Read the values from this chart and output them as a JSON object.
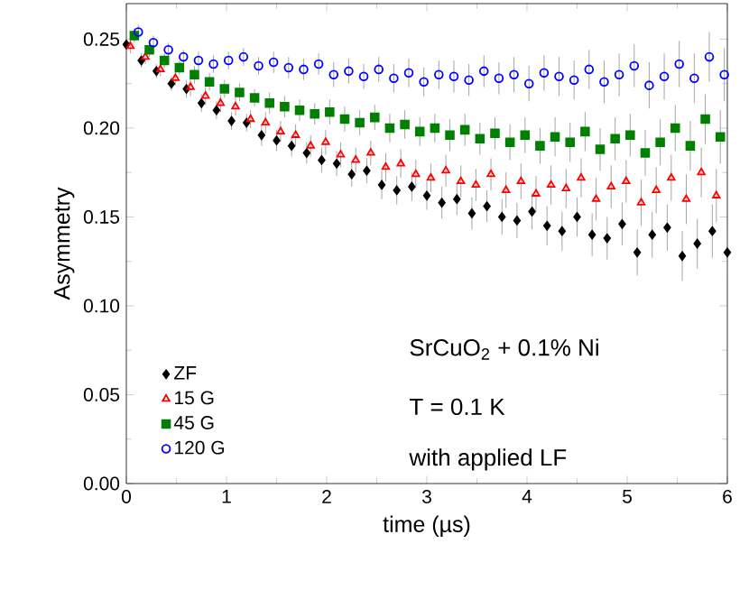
{
  "chart_data": {
    "type": "scatter",
    "xlabel": "time (µs)",
    "ylabel": "Asymmetry",
    "series": [
      {
        "name": "ZF",
        "color": "#000000",
        "marker": "diamond",
        "x": [
          0,
          0.15,
          0.3,
          0.45,
          0.6,
          0.75,
          0.9,
          1.05,
          1.2,
          1.35,
          1.5,
          1.65,
          1.8,
          1.95,
          2.1,
          2.25,
          2.4,
          2.55,
          2.7,
          2.85,
          3,
          3.15,
          3.3,
          3.45,
          3.6,
          3.75,
          3.9,
          4.05,
          4.2,
          4.35,
          4.5,
          4.65,
          4.8,
          4.95,
          5.1,
          5.25,
          5.4,
          5.55,
          5.7,
          5.85,
          6
        ],
        "values": [
          0.247,
          0.238,
          0.232,
          0.225,
          0.222,
          0.214,
          0.21,
          0.204,
          0.203,
          0.196,
          0.193,
          0.19,
          0.186,
          0.182,
          0.18,
          0.174,
          0.176,
          0.168,
          0.165,
          0.167,
          0.162,
          0.158,
          0.16,
          0.152,
          0.156,
          0.15,
          0.148,
          0.153,
          0.145,
          0.142,
          0.15,
          0.14,
          0.138,
          0.146,
          0.13,
          0.14,
          0.144,
          0.128,
          0.135,
          0.142,
          0.13
        ],
        "errors": [
          0.004,
          0.004,
          0.004,
          0.004,
          0.005,
          0.005,
          0.005,
          0.005,
          0.005,
          0.006,
          0.006,
          0.006,
          0.006,
          0.007,
          0.007,
          0.007,
          0.007,
          0.008,
          0.008,
          0.008,
          0.008,
          0.009,
          0.009,
          0.009,
          0.009,
          0.01,
          0.01,
          0.01,
          0.011,
          0.011,
          0.011,
          0.012,
          0.012,
          0.012,
          0.013,
          0.013,
          0.013,
          0.014,
          0.014,
          0.015,
          0.015
        ]
      },
      {
        "name": "15 G",
        "color": "#ff0000",
        "marker": "triangle",
        "x": [
          0.04,
          0.19,
          0.34,
          0.49,
          0.64,
          0.79,
          0.94,
          1.09,
          1.24,
          1.39,
          1.54,
          1.69,
          1.84,
          1.99,
          2.14,
          2.29,
          2.44,
          2.59,
          2.74,
          2.89,
          3.04,
          3.19,
          3.34,
          3.49,
          3.64,
          3.79,
          3.94,
          4.09,
          4.24,
          4.39,
          4.54,
          4.69,
          4.84,
          4.99,
          5.14,
          5.29,
          5.44,
          5.59,
          5.74,
          5.89
        ],
        "values": [
          0.246,
          0.24,
          0.233,
          0.228,
          0.223,
          0.218,
          0.214,
          0.212,
          0.205,
          0.203,
          0.198,
          0.196,
          0.19,
          0.192,
          0.185,
          0.182,
          0.186,
          0.178,
          0.18,
          0.174,
          0.172,
          0.176,
          0.17,
          0.168,
          0.174,
          0.165,
          0.17,
          0.163,
          0.168,
          0.166,
          0.172,
          0.16,
          0.167,
          0.17,
          0.158,
          0.165,
          0.172,
          0.16,
          0.175,
          0.162
        ],
        "errors": [
          0.004,
          0.004,
          0.004,
          0.004,
          0.005,
          0.005,
          0.005,
          0.005,
          0.005,
          0.006,
          0.006,
          0.006,
          0.006,
          0.007,
          0.007,
          0.007,
          0.007,
          0.008,
          0.008,
          0.008,
          0.008,
          0.009,
          0.009,
          0.009,
          0.009,
          0.01,
          0.01,
          0.01,
          0.011,
          0.011,
          0.011,
          0.012,
          0.012,
          0.012,
          0.013,
          0.013,
          0.013,
          0.014,
          0.014,
          0.015
        ]
      },
      {
        "name": "45 G",
        "color": "#008000",
        "marker": "square",
        "x": [
          0.08,
          0.23,
          0.38,
          0.53,
          0.68,
          0.83,
          0.98,
          1.13,
          1.28,
          1.43,
          1.58,
          1.73,
          1.88,
          2.03,
          2.18,
          2.33,
          2.48,
          2.63,
          2.78,
          2.93,
          3.08,
          3.23,
          3.38,
          3.53,
          3.68,
          3.83,
          3.98,
          4.13,
          4.28,
          4.43,
          4.58,
          4.73,
          4.88,
          5.03,
          5.18,
          5.33,
          5.48,
          5.63,
          5.78,
          5.93
        ],
        "values": [
          0.252,
          0.244,
          0.238,
          0.234,
          0.23,
          0.226,
          0.222,
          0.22,
          0.217,
          0.214,
          0.212,
          0.21,
          0.208,
          0.209,
          0.205,
          0.203,
          0.206,
          0.2,
          0.202,
          0.198,
          0.2,
          0.196,
          0.199,
          0.194,
          0.197,
          0.192,
          0.196,
          0.19,
          0.195,
          0.192,
          0.198,
          0.188,
          0.194,
          0.196,
          0.186,
          0.192,
          0.2,
          0.19,
          0.205,
          0.195
        ],
        "errors": [
          0.004,
          0.004,
          0.004,
          0.004,
          0.005,
          0.005,
          0.005,
          0.005,
          0.005,
          0.006,
          0.006,
          0.006,
          0.006,
          0.007,
          0.007,
          0.007,
          0.007,
          0.008,
          0.008,
          0.008,
          0.008,
          0.009,
          0.009,
          0.009,
          0.009,
          0.01,
          0.01,
          0.01,
          0.011,
          0.011,
          0.011,
          0.012,
          0.012,
          0.012,
          0.013,
          0.013,
          0.013,
          0.014,
          0.014,
          0.015
        ]
      },
      {
        "name": "120 G",
        "color": "#0000ff",
        "marker": "circle",
        "x": [
          0.12,
          0.27,
          0.42,
          0.57,
          0.72,
          0.87,
          1.02,
          1.17,
          1.32,
          1.47,
          1.62,
          1.77,
          1.92,
          2.07,
          2.22,
          2.37,
          2.52,
          2.67,
          2.82,
          2.97,
          3.12,
          3.27,
          3.42,
          3.57,
          3.72,
          3.87,
          4.02,
          4.17,
          4.32,
          4.47,
          4.62,
          4.77,
          4.92,
          5.07,
          5.22,
          5.37,
          5.52,
          5.67,
          5.82,
          5.97
        ],
        "values": [
          0.254,
          0.248,
          0.244,
          0.24,
          0.238,
          0.236,
          0.238,
          0.24,
          0.235,
          0.237,
          0.234,
          0.233,
          0.236,
          0.23,
          0.232,
          0.229,
          0.233,
          0.228,
          0.231,
          0.226,
          0.23,
          0.229,
          0.227,
          0.232,
          0.228,
          0.23,
          0.225,
          0.231,
          0.229,
          0.227,
          0.233,
          0.226,
          0.23,
          0.235,
          0.224,
          0.229,
          0.236,
          0.228,
          0.24,
          0.23
        ],
        "errors": [
          0.004,
          0.004,
          0.004,
          0.004,
          0.005,
          0.005,
          0.005,
          0.005,
          0.005,
          0.006,
          0.006,
          0.006,
          0.006,
          0.007,
          0.007,
          0.007,
          0.007,
          0.008,
          0.008,
          0.008,
          0.008,
          0.009,
          0.009,
          0.009,
          0.009,
          0.01,
          0.01,
          0.01,
          0.011,
          0.011,
          0.011,
          0.012,
          0.012,
          0.012,
          0.013,
          0.013,
          0.013,
          0.014,
          0.014,
          0.015
        ]
      }
    ],
    "xlim": [
      0,
      6
    ],
    "ylim": [
      0,
      0.27
    ],
    "xticks": [
      0,
      1,
      2,
      3,
      4,
      5,
      6
    ],
    "yticks": [
      {
        "value": 0,
        "label": "0.00"
      },
      {
        "value": 0.05,
        "label": "0.05"
      },
      {
        "value": 0.1,
        "label": "0.10"
      },
      {
        "value": 0.15,
        "label": "0.15"
      },
      {
        "value": 0.2,
        "label": "0.20"
      },
      {
        "value": 0.25,
        "label": "0.25"
      }
    ],
    "legend": "bottom left",
    "grid": false,
    "annotations": [
      "SrCuO$_{2}$ + 0.1% Ni",
      "T = 0.1 K",
      "with applied LF"
    ]
  }
}
